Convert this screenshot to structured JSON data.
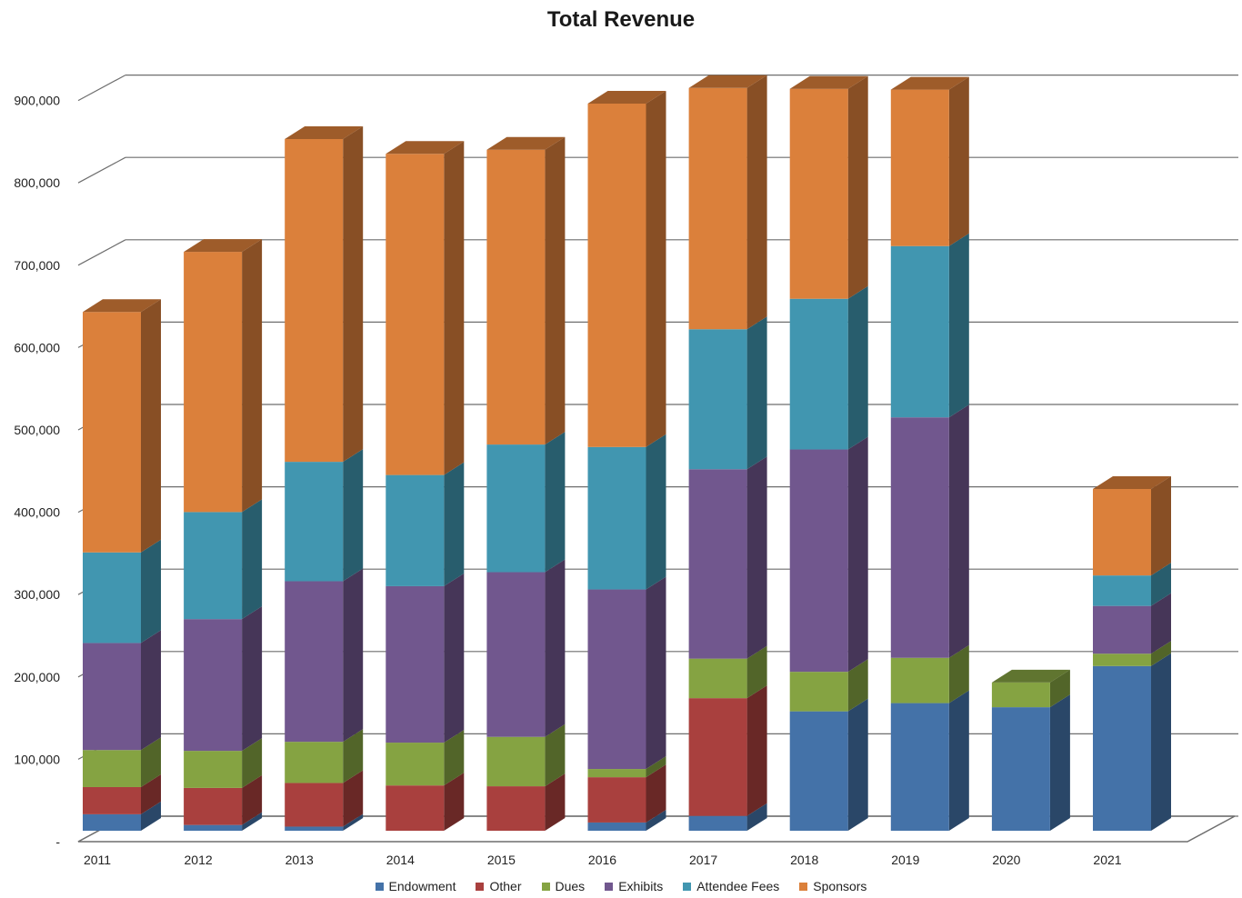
{
  "chart_data": {
    "type": "bar",
    "stacked": true,
    "style": "3d-column",
    "title": "Total Revenue",
    "xlabel": "",
    "ylabel": "",
    "ylim": [
      0,
      900000
    ],
    "yticks": [
      0,
      100000,
      200000,
      300000,
      400000,
      500000,
      600000,
      700000,
      800000,
      900000
    ],
    "ytick_labels": [
      "-",
      "100,000",
      "200,000",
      "300,000",
      "400,000",
      "500,000",
      "600,000",
      "700,000",
      "800,000",
      "900,000"
    ],
    "grid": true,
    "legend_position": "bottom",
    "categories": [
      "2011",
      "2012",
      "2013",
      "2014",
      "2015",
      "2016",
      "2017",
      "2018",
      "2019",
      "2020",
      "2021"
    ],
    "series": [
      {
        "name": "Endowment",
        "color": "#4472A8",
        "values": [
          20000,
          7000,
          5000,
          0,
          0,
          10000,
          18000,
          145000,
          155000,
          150000,
          200000
        ]
      },
      {
        "name": "Other",
        "color": "#A9403E",
        "values": [
          33000,
          45000,
          53000,
          55000,
          54000,
          55000,
          143000,
          0,
          0,
          0,
          0
        ]
      },
      {
        "name": "Dues",
        "color": "#85A342",
        "values": [
          45000,
          45000,
          50000,
          52000,
          60000,
          10000,
          48000,
          48000,
          55000,
          30000,
          15000
        ]
      },
      {
        "name": "Exhibits",
        "color": "#71578E",
        "values": [
          130000,
          160000,
          195000,
          190000,
          200000,
          218000,
          230000,
          270000,
          292000,
          0,
          58000
        ]
      },
      {
        "name": "Attendee Fees",
        "color": "#4196B0",
        "values": [
          110000,
          130000,
          145000,
          135000,
          155000,
          173000,
          170000,
          183000,
          208000,
          0,
          37000
        ]
      },
      {
        "name": "Sponsors",
        "color": "#DB803B",
        "values": [
          292000,
          316000,
          392000,
          390000,
          358000,
          417000,
          293000,
          255000,
          190000,
          0,
          105000
        ]
      }
    ]
  }
}
